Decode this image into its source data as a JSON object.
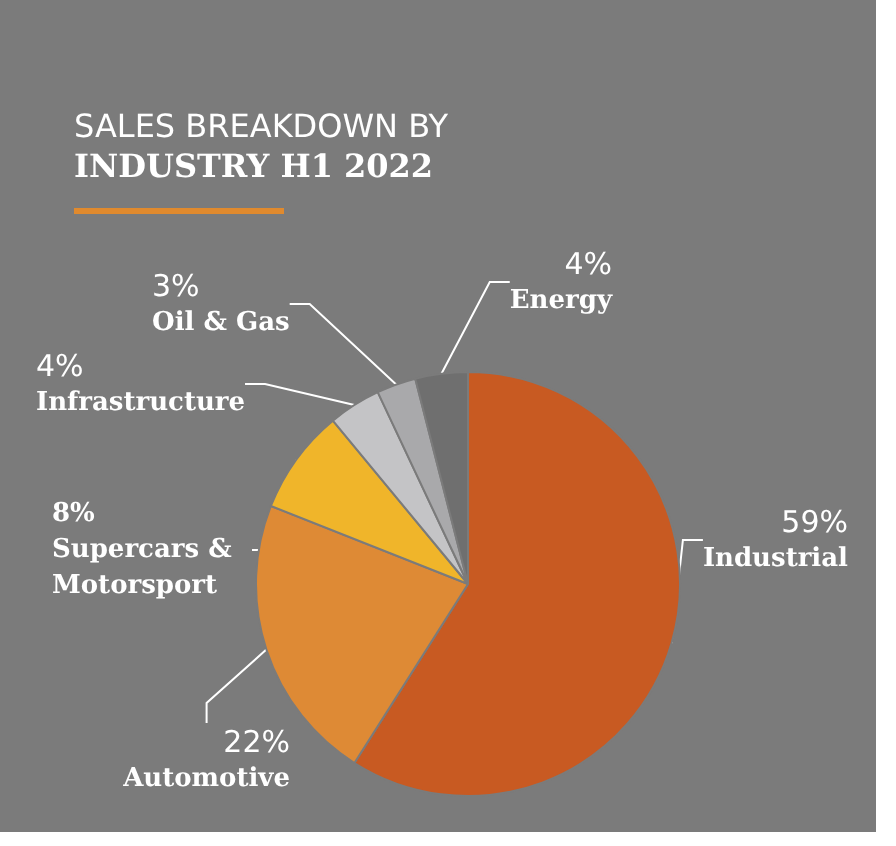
{
  "chart_data": {
    "type": "pie",
    "title": "SALES BREAKDOWN BY",
    "subtitle": "INDUSTRY H1 2022",
    "categories": [
      "Industrial",
      "Automotive",
      "Supercars & Motorsport",
      "Infrastructure",
      "Oil & Gas",
      "Energy"
    ],
    "values": [
      59,
      22,
      8,
      4,
      3,
      4
    ],
    "value_labels": [
      "59%",
      "22%",
      "8%",
      "4%",
      "3%",
      "4%"
    ],
    "colors": [
      "#c85a22",
      "#de8a35",
      "#f0b52a",
      "#c4c4c6",
      "#a9a9ab",
      "#6f6f6f"
    ],
    "legend": false
  }
}
